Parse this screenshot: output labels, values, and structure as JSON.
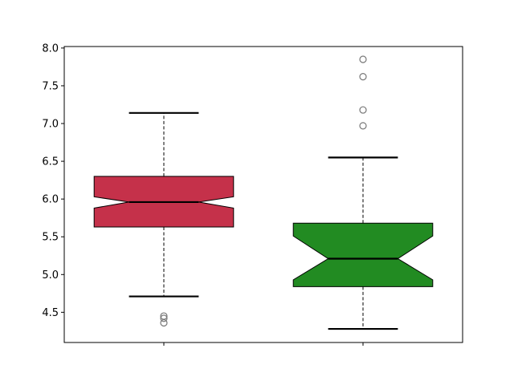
{
  "chart_data": {
    "type": "boxplot",
    "notched": true,
    "title": "",
    "xlabel": "",
    "ylabel": "",
    "ylim": [
      4.1,
      8.02
    ],
    "xlim": [
      0.5,
      2.5
    ],
    "yticks": [
      "4.5",
      "5.0",
      "5.5",
      "6.0",
      "6.5",
      "7.0",
      "7.5",
      "8.0"
    ],
    "xticks": [
      "",
      ""
    ],
    "grid": false,
    "boxes": [
      {
        "position": 1,
        "color": "#c5314a",
        "whisker_low": 4.71,
        "q1": 5.63,
        "median": 5.96,
        "q3": 6.3,
        "whisker_high": 7.14,
        "notch_low": 5.88,
        "notch_high": 6.03,
        "outliers": [
          4.45,
          4.42,
          4.36
        ]
      },
      {
        "position": 2,
        "color": "#228b22",
        "whisker_low": 4.28,
        "q1": 4.84,
        "median": 5.21,
        "q3": 5.68,
        "whisker_high": 6.55,
        "notch_low": 4.93,
        "notch_high": 5.51,
        "outliers": [
          7.85,
          7.62,
          7.18,
          6.97
        ]
      }
    ]
  }
}
